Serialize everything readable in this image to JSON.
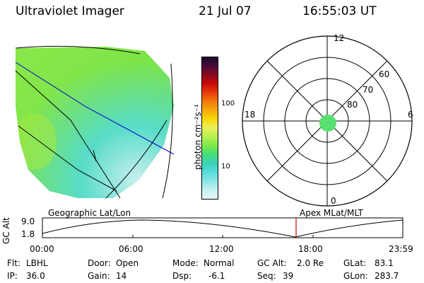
{
  "header": {
    "instrument": "Ultraviolet Imager",
    "date": "21 Jul 07",
    "time": "16:55:03 UT"
  },
  "colorbar": {
    "unit_label": "photon cm⁻²s⁻¹",
    "ticks": [
      "100",
      "10"
    ],
    "colors": [
      "#1a0a2e",
      "#4a0b3a",
      "#8a0a1e",
      "#c80a0a",
      "#e83c0a",
      "#f07a0a",
      "#f5aa0a",
      "#f8d80a",
      "#e8f05a",
      "#b4f050",
      "#7cea48",
      "#44dc78",
      "#3ad2b6",
      "#58dcdc",
      "#8ce6e6",
      "#c8f0f0",
      "#e6f8f8"
    ]
  },
  "polar": {
    "mlt_labels": [
      "12",
      "18",
      "6",
      "0"
    ],
    "lat_labels": [
      "60",
      "70",
      "80"
    ],
    "patch_color": "#58e070"
  },
  "timeline": {
    "left_label": "Geographic Lat/Lon",
    "right_label": "Apex MLat/MLT",
    "ylabel": "GC Alt",
    "ytick_top": "9.0",
    "ytick_bottom": "1.8",
    "xticks": [
      "00:00",
      "06:00",
      "12:00",
      "18:00",
      "23:59"
    ],
    "marker_color": "#dd0000"
  },
  "info": {
    "flt_label": "Flt:",
    "flt_value": "LBHL",
    "ip_label": "IP:",
    "ip_value": "36.0",
    "door_label": "Door:",
    "door_value": "Open",
    "gain_label": "Gain:",
    "gain_value": "14",
    "mode_label": "Mode:",
    "mode_value": "Normal",
    "dsp_label": "Dsp:",
    "dsp_value": "-6.1",
    "gcalt_label": "GC Alt:",
    "gcalt_value": "2.0 Re",
    "seq_label": "Seq:",
    "seq_value": "39",
    "glat_label": "GLat:",
    "glat_value": "83.1",
    "glon_label": "GLon:",
    "glon_value": "283.7"
  }
}
